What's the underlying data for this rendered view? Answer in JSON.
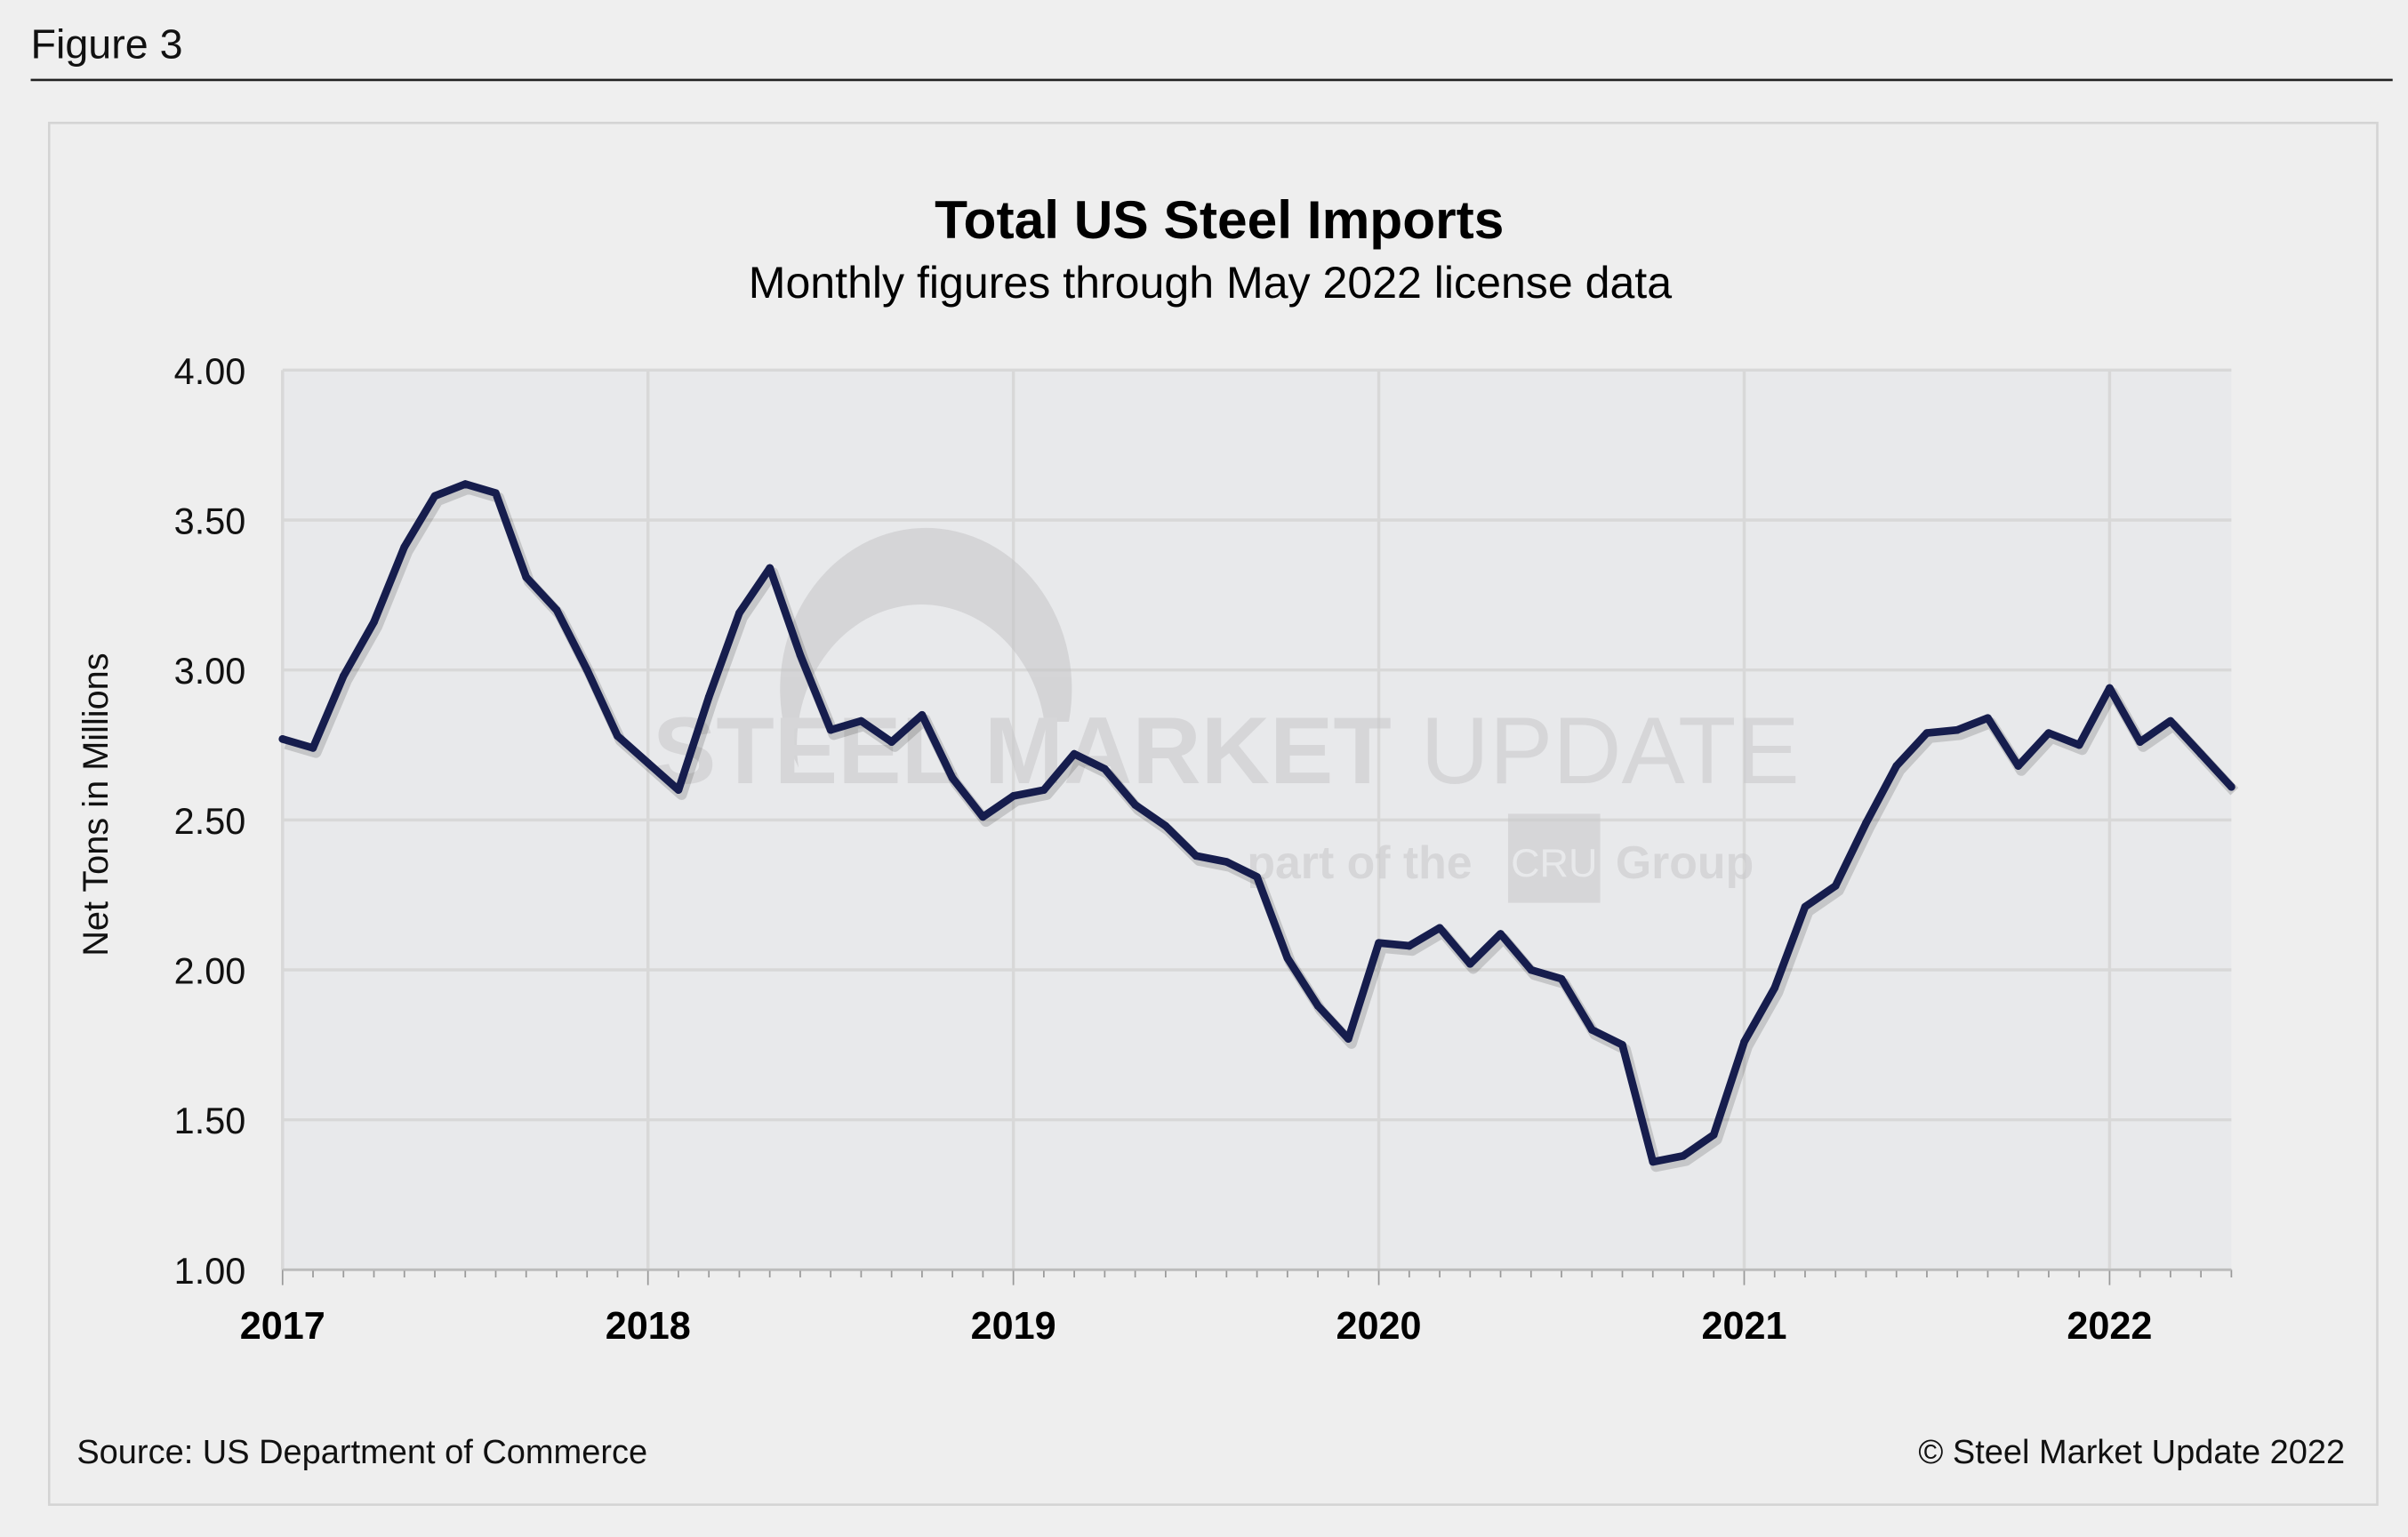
{
  "figure_label": "Figure 3",
  "source": "Source: US Department of Commerce",
  "copyright": "© Steel Market Update 2022",
  "watermark": {
    "brand_bold": "STEEL MARKET",
    "brand_light": "UPDATE",
    "tag_pre": "part of the",
    "tag_box": "CRU",
    "tag_post": "Group"
  },
  "colors": {
    "line": "#161d4d",
    "plot_bg": "#e8e9eb",
    "grid": "#d8d8d8",
    "page_bg": "#efefef"
  },
  "chart_data": {
    "type": "line",
    "title": "Total US Steel Imports",
    "subtitle": "Monthly figures through May 2022 license data",
    "xlabel": "",
    "ylabel": "Net Tons in Millions",
    "ylim": [
      1.0,
      4.0
    ],
    "yticks": [
      "4.00",
      "3.50",
      "3.00",
      "2.50",
      "2.00",
      "1.50",
      "1.00"
    ],
    "xticks": [
      "2017",
      "2018",
      "2019",
      "2020",
      "2021",
      "2022"
    ],
    "x_start": "2017-01",
    "x_end": "2022-05",
    "grid": true,
    "series": [
      {
        "values": [
          2.77,
          2.74,
          2.98,
          3.16,
          3.41,
          3.58,
          3.62,
          3.59,
          3.31,
          3.2,
          3.0,
          2.78,
          2.69,
          2.6,
          2.91,
          3.19,
          3.34,
          3.05,
          2.8,
          2.83,
          2.76,
          2.85,
          2.64,
          2.51,
          2.58,
          2.6,
          2.72,
          2.67,
          2.55,
          2.48,
          2.38,
          2.36,
          2.31,
          2.04,
          1.88,
          1.77,
          2.09,
          2.08,
          2.14,
          2.02,
          2.12,
          2.0,
          1.97,
          1.8,
          1.75,
          1.36,
          1.38,
          1.45,
          1.76,
          1.94,
          2.21,
          2.28,
          2.49,
          2.68,
          2.79,
          2.8,
          2.84,
          2.68,
          2.79,
          2.75,
          2.94,
          2.76,
          2.83,
          2.72,
          2.61
        ]
      }
    ]
  }
}
